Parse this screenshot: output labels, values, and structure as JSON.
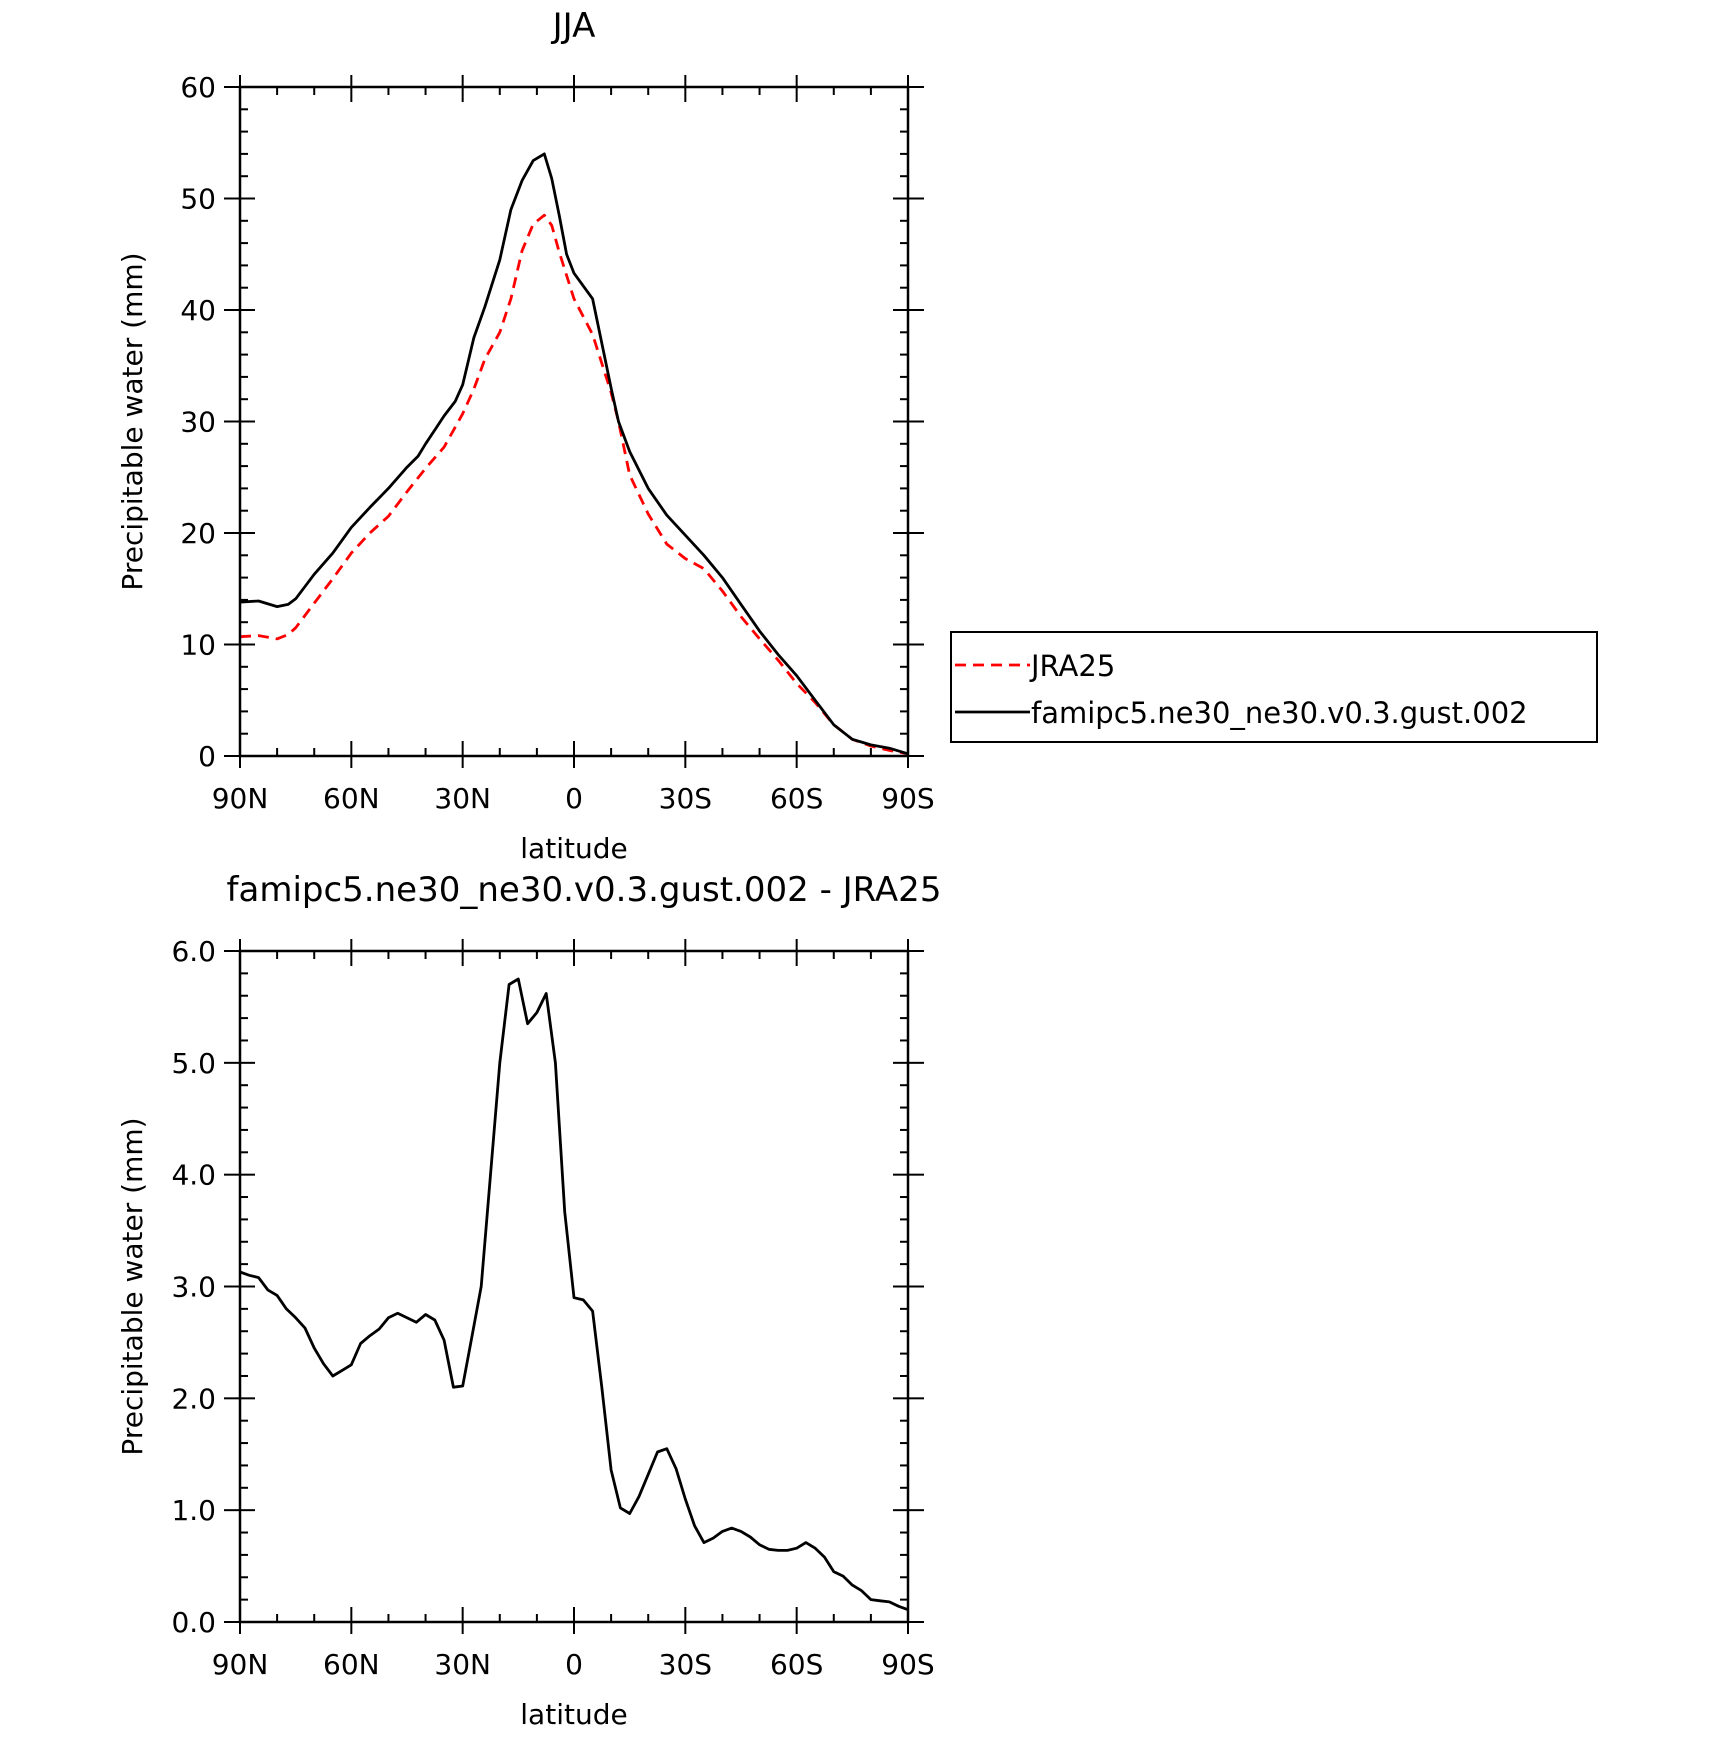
{
  "chart_data": [
    {
      "type": "line",
      "title": "JJA",
      "xlabel": "latitude",
      "ylabel": "Precipitable water (mm)",
      "xlim": [
        90,
        -90
      ],
      "ylim": [
        0,
        60
      ],
      "xticks": [
        {
          "value": 90,
          "label": "90N"
        },
        {
          "value": 60,
          "label": "60N"
        },
        {
          "value": 30,
          "label": "30N"
        },
        {
          "value": 0,
          "label": "0"
        },
        {
          "value": -30,
          "label": "30S"
        },
        {
          "value": -60,
          "label": "60S"
        },
        {
          "value": -90,
          "label": "90S"
        }
      ],
      "yticks": [
        {
          "value": 0,
          "label": "0"
        },
        {
          "value": 10,
          "label": "10"
        },
        {
          "value": 20,
          "label": "20"
        },
        {
          "value": 30,
          "label": "30"
        },
        {
          "value": 40,
          "label": "40"
        },
        {
          "value": 50,
          "label": "50"
        },
        {
          "value": 60,
          "label": "60"
        }
      ],
      "legend": {
        "placement": "right",
        "entries": [
          "JRA25",
          "famipc5.ne30_ne30.v0.3.gust.002"
        ]
      },
      "series": [
        {
          "name": "JRA25",
          "color": "#ff0000",
          "dash": "dashed",
          "x": [
            90,
            85,
            80,
            77,
            75,
            70,
            65,
            60,
            55,
            50,
            45,
            40,
            35,
            30,
            27,
            24,
            20,
            17,
            14,
            11,
            8,
            6,
            4,
            2,
            0,
            -5,
            -10,
            -12,
            -15,
            -20,
            -25,
            -30,
            -35,
            -40,
            -45,
            -50,
            -55,
            -60,
            -65,
            -70,
            -75,
            -80,
            -85,
            -90
          ],
          "y": [
            10.7,
            10.8,
            10.5,
            10.9,
            11.5,
            13.7,
            15.9,
            18.2,
            20.0,
            21.5,
            23.7,
            25.8,
            27.7,
            30.7,
            32.9,
            35.6,
            38.0,
            41.0,
            45.3,
            47.7,
            48.5,
            47.6,
            45.2,
            43.1,
            41.0,
            37.8,
            32.6,
            30.0,
            25.2,
            21.7,
            19.0,
            17.7,
            16.8,
            14.8,
            12.5,
            10.5,
            8.6,
            6.5,
            4.8,
            2.8,
            1.5,
            0.9,
            0.5,
            0.2
          ]
        },
        {
          "name": "famipc5.ne30_ne30.v0.3.gust.002",
          "color": "#000000",
          "dash": "solid",
          "x": [
            90,
            85,
            80,
            77,
            75,
            70,
            65,
            60,
            55,
            50,
            45,
            42,
            40,
            37,
            35,
            32,
            30,
            27,
            24,
            20,
            17,
            14,
            11,
            8,
            6,
            4,
            2,
            0,
            -5,
            -10,
            -12,
            -15,
            -20,
            -25,
            -30,
            -35,
            -40,
            -45,
            -50,
            -55,
            -60,
            -65,
            -70,
            -75,
            -80,
            -85,
            -90
          ],
          "y": [
            13.8,
            13.9,
            13.4,
            13.6,
            14.1,
            16.3,
            18.2,
            20.5,
            22.3,
            24.0,
            25.9,
            26.9,
            28.0,
            29.5,
            30.5,
            31.8,
            33.3,
            37.5,
            40.3,
            44.5,
            49.0,
            51.6,
            53.4,
            54.0,
            51.8,
            48.5,
            45.0,
            43.3,
            41.0,
            33.0,
            30.0,
            27.3,
            24.0,
            21.6,
            19.8,
            18.0,
            16.0,
            13.6,
            11.2,
            9.1,
            7.2,
            5.0,
            2.8,
            1.5,
            1.0,
            0.7,
            0.2
          ]
        }
      ]
    },
    {
      "type": "line",
      "title": "famipc5.ne30_ne30.v0.3.gust.002 - JRA25",
      "xlabel": "latitude",
      "ylabel": "Precipitable water (mm)",
      "xlim": [
        90,
        -90
      ],
      "ylim": [
        0,
        6
      ],
      "xticks": [
        {
          "value": 90,
          "label": "90N"
        },
        {
          "value": 60,
          "label": "60N"
        },
        {
          "value": 30,
          "label": "30N"
        },
        {
          "value": 0,
          "label": "0"
        },
        {
          "value": -30,
          "label": "30S"
        },
        {
          "value": -60,
          "label": "60S"
        },
        {
          "value": -90,
          "label": "90S"
        }
      ],
      "yticks": [
        {
          "value": 0,
          "label": "0.0"
        },
        {
          "value": 1,
          "label": "1.0"
        },
        {
          "value": 2,
          "label": "2.0"
        },
        {
          "value": 3,
          "label": "3.0"
        },
        {
          "value": 4,
          "label": "4.0"
        },
        {
          "value": 5,
          "label": "5.0"
        },
        {
          "value": 6,
          "label": "6.0"
        }
      ],
      "series": [
        {
          "name": "famipc5.ne30_ne30.v0.3.gust.002 - JRA25",
          "color": "#000000",
          "dash": "solid",
          "x": [
            90,
            87.5,
            85,
            82.5,
            80,
            77.5,
            75,
            72.5,
            70,
            67.5,
            65,
            62.5,
            60,
            57.5,
            55,
            52.5,
            50,
            47.5,
            45,
            42.5,
            40,
            37.5,
            35,
            32.5,
            30,
            27.5,
            25,
            22.5,
            20,
            17.5,
            15,
            12.5,
            10,
            7.5,
            5,
            2.5,
            0,
            -2.5,
            -5,
            -7.5,
            -10,
            -12.5,
            -15,
            -17.5,
            -20,
            -22.5,
            -25,
            -27.5,
            -30,
            -32.5,
            -35,
            -37.5,
            -40,
            -42.5,
            -45,
            -47.5,
            -50,
            -52.5,
            -55,
            -57.5,
            -60,
            -62.5,
            -65,
            -67.5,
            -70,
            -72.5,
            -75,
            -77.5,
            -80,
            -82.5,
            -85,
            -87.5,
            -90
          ],
          "y": [
            3.13,
            3.1,
            3.08,
            2.97,
            2.92,
            2.8,
            2.72,
            2.63,
            2.45,
            2.31,
            2.2,
            2.25,
            2.3,
            2.49,
            2.56,
            2.62,
            2.72,
            2.76,
            2.72,
            2.68,
            2.75,
            2.7,
            2.52,
            2.1,
            2.11,
            2.55,
            3.0,
            4.0,
            5.0,
            5.7,
            5.75,
            5.35,
            5.45,
            5.62,
            5.0,
            3.67,
            2.9,
            2.88,
            2.78,
            2.1,
            1.36,
            1.02,
            0.97,
            1.12,
            1.32,
            1.52,
            1.55,
            1.37,
            1.1,
            0.86,
            0.71,
            0.75,
            0.81,
            0.84,
            0.81,
            0.76,
            0.69,
            0.65,
            0.64,
            0.64,
            0.66,
            0.71,
            0.66,
            0.58,
            0.45,
            0.41,
            0.33,
            0.28,
            0.2,
            0.19,
            0.18,
            0.14,
            0.11
          ]
        }
      ]
    }
  ]
}
